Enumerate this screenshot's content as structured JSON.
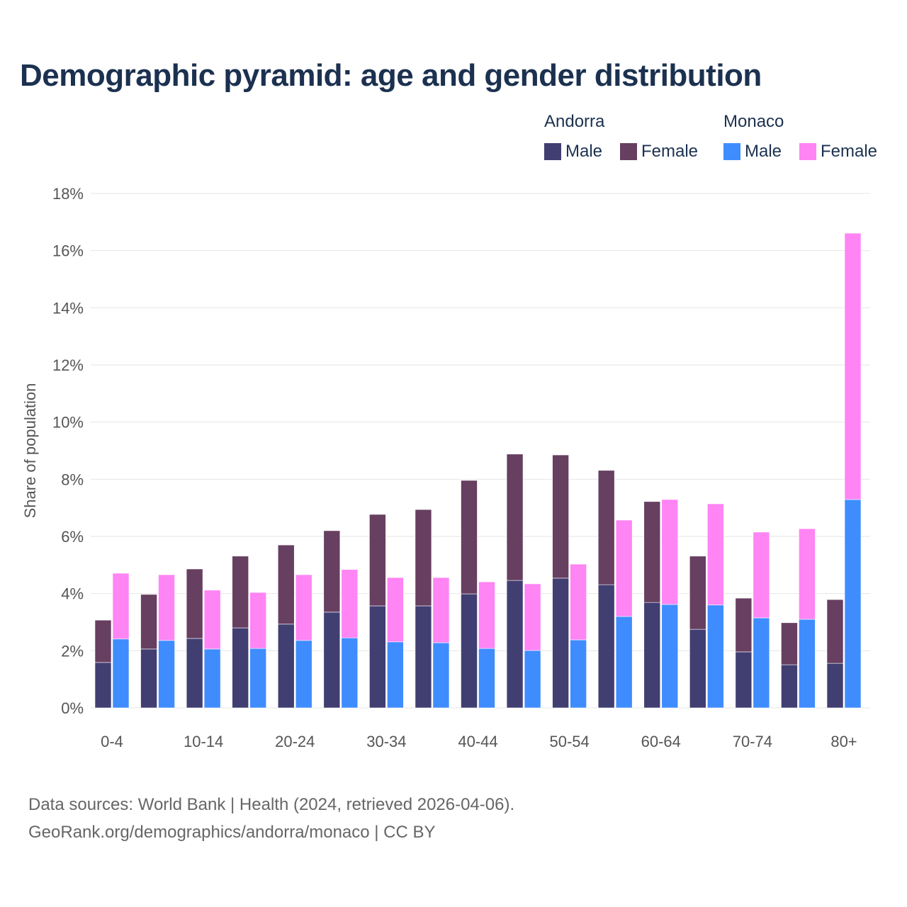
{
  "chart_data": {
    "type": "bar",
    "title": "Demographic pyramid: age and gender distribution",
    "ylabel": "Share of population",
    "xlabel": "",
    "ylim": [
      0,
      18
    ],
    "yticks": [
      0,
      2,
      4,
      6,
      8,
      10,
      12,
      14,
      16,
      18
    ],
    "ytick_labels": [
      "0%",
      "2%",
      "4%",
      "6%",
      "8%",
      "10%",
      "12%",
      "14%",
      "16%",
      "18%"
    ],
    "grid": true,
    "legend_position": "top-right",
    "categories": [
      "0-4",
      "5-9",
      "10-14",
      "15-19",
      "20-24",
      "25-29",
      "30-34",
      "35-39",
      "40-44",
      "45-49",
      "50-54",
      "55-59",
      "60-64",
      "65-69",
      "70-74",
      "75-79",
      "80+"
    ],
    "xtick_labels_shown": [
      "0-4",
      "10-14",
      "20-24",
      "30-34",
      "40-44",
      "50-54",
      "60-64",
      "70-74",
      "80+"
    ],
    "legend": {
      "groups": [
        {
          "name": "Andorra",
          "items": [
            "Male",
            "Female"
          ]
        },
        {
          "name": "Monaco",
          "items": [
            "Male",
            "Female"
          ]
        }
      ]
    },
    "series": [
      {
        "name": "Andorra Male",
        "country": "Andorra",
        "gender": "Male",
        "stack": "Andorra",
        "color": "#413e72",
        "values": [
          1.59,
          2.06,
          2.43,
          2.8,
          2.93,
          3.35,
          3.57,
          3.57,
          3.99,
          4.46,
          4.54,
          4.31,
          3.69,
          2.75,
          1.96,
          1.51,
          1.56
        ]
      },
      {
        "name": "Andorra Female",
        "country": "Andorra",
        "gender": "Female",
        "stack": "Andorra",
        "color": "#673f60",
        "values": [
          1.48,
          1.91,
          2.43,
          2.51,
          2.77,
          2.85,
          3.2,
          3.37,
          3.97,
          4.42,
          4.31,
          4.0,
          3.53,
          2.56,
          1.88,
          1.47,
          2.23
        ]
      },
      {
        "name": "Monaco Male",
        "country": "Monaco",
        "gender": "Male",
        "stack": "Monaco",
        "color": "#3f8cff",
        "values": [
          2.41,
          2.36,
          2.06,
          2.08,
          2.36,
          2.45,
          2.31,
          2.28,
          2.08,
          2.01,
          2.38,
          3.2,
          3.62,
          3.6,
          3.15,
          3.1,
          7.29
        ]
      },
      {
        "name": "Monaco Female",
        "country": "Monaco",
        "gender": "Female",
        "stack": "Monaco",
        "color": "#ff84f4",
        "values": [
          2.3,
          2.3,
          2.06,
          1.96,
          2.3,
          2.39,
          2.25,
          2.28,
          2.33,
          2.33,
          2.65,
          3.37,
          3.67,
          3.54,
          3.0,
          3.17,
          9.32
        ]
      }
    ]
  },
  "source": {
    "line1": "Data sources: World Bank | Health (2024, retrieved 2026-04-06).",
    "line2": "GeoRank.org/demographics/andorra/monaco | CC BY"
  }
}
